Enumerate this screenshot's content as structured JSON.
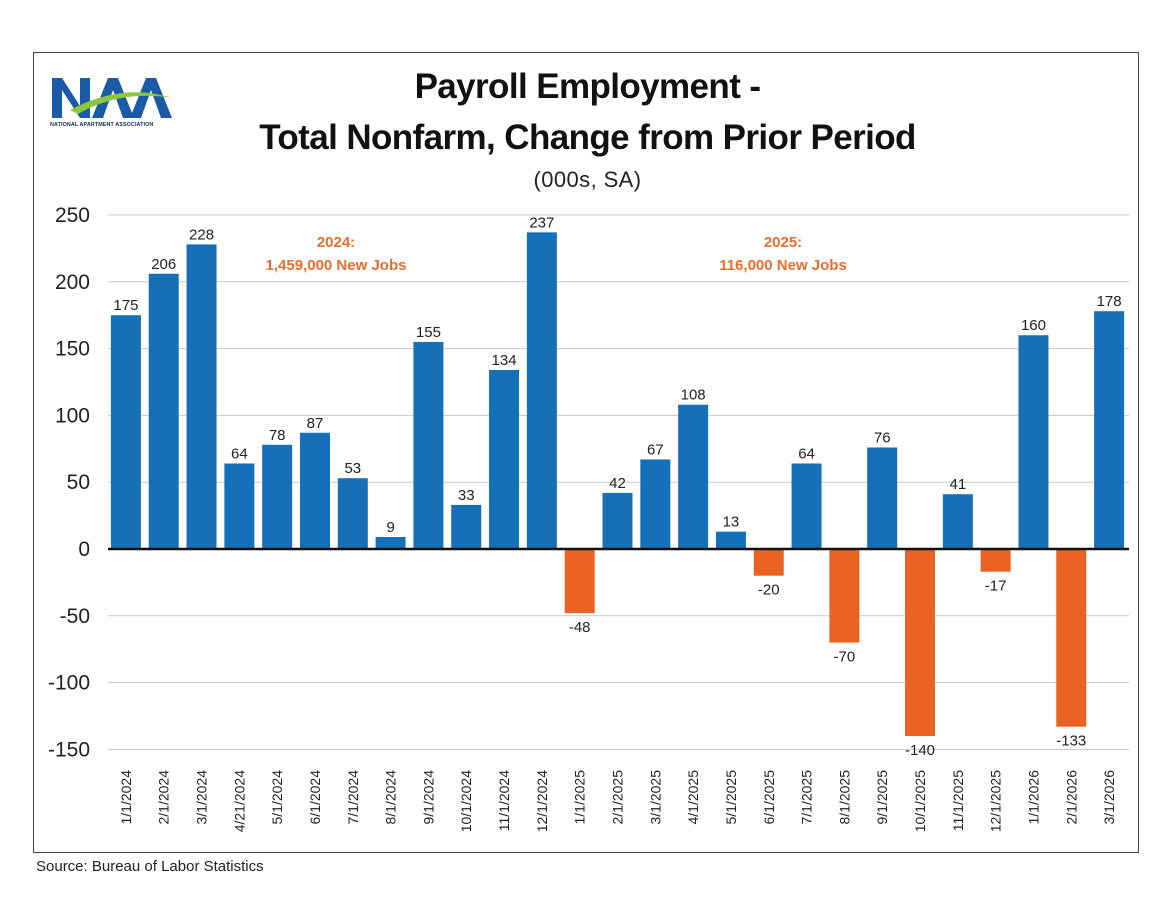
{
  "logo": {
    "name": "naa-logo",
    "text": "NAA",
    "subtext": "NATIONAL APARTMENT ASSOCIATION"
  },
  "title_line1": "Payroll Employment -",
  "title_line2": "Total Nonfarm, Change from Prior Period",
  "subtitle": "(000s, SA)",
  "source": "Source:  Bureau of Labor Statistics",
  "colors": {
    "positive": "#1670b8",
    "negative": "#ea6222",
    "annotation": "#ea6d2c",
    "grid": "#c8c8c8",
    "zero_line": "#111111"
  },
  "chart_data": {
    "type": "bar",
    "title": "Payroll Employment - Total Nonfarm, Change from Prior Period",
    "subtitle": "(000s, SA)",
    "ylim": [
      -150,
      250
    ],
    "yticks": [
      250,
      200,
      150,
      100,
      50,
      0,
      -50,
      -100,
      -150
    ],
    "grid": true,
    "categories": [
      "1/1/2024",
      "2/1/2024",
      "3/1/2024",
      "4/21/2024",
      "5/1/2024",
      "6/1/2024",
      "7/1/2024",
      "8/1/2024",
      "9/1/2024",
      "10/1/2024",
      "11/1/2024",
      "12/1/2024",
      "1/1/2025",
      "2/1/2025",
      "3/1/2025",
      "4/1/2025",
      "5/1/2025",
      "6/1/2025",
      "7/1/2025",
      "8/1/2025",
      "9/1/2025",
      "10/1/2025",
      "11/1/2025",
      "12/1/2025",
      "1/1/2026",
      "2/1/2026",
      "3/1/2026"
    ],
    "values": [
      175,
      206,
      228,
      64,
      78,
      87,
      53,
      9,
      155,
      33,
      134,
      237,
      -48,
      42,
      67,
      108,
      13,
      -20,
      64,
      -70,
      76,
      -140,
      41,
      -17,
      160,
      -133,
      178
    ],
    "annotations": [
      {
        "line1": "2024:",
        "line2": "1,459,000 New Jobs",
        "placement": "top-left"
      },
      {
        "line1": "2025:",
        "line2": "116,000 New Jobs",
        "placement": "top-center"
      }
    ]
  }
}
